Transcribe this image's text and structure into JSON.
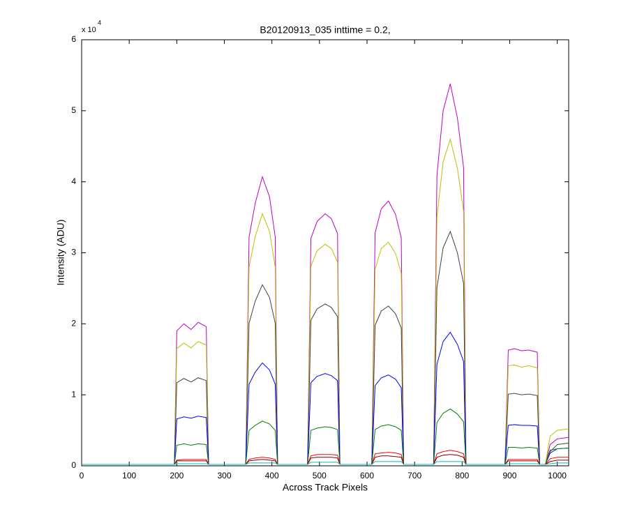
{
  "chart_data": {
    "type": "line",
    "title": "B20120913_035 inttime = 0.2,",
    "x_label": "Across Track Pixels",
    "y_label": "Intensity (ADU)",
    "y_multiplier": {
      "base": "x 10",
      "exponent": "4"
    },
    "xlim": [
      0,
      1024
    ],
    "xticks": [
      0,
      100,
      200,
      300,
      400,
      500,
      600,
      700,
      800,
      900,
      1000
    ],
    "ylim": [
      0,
      6
    ],
    "yticks": [
      0,
      1,
      2,
      3,
      4,
      5,
      6
    ],
    "grid": false,
    "x": [
      0,
      195,
      200,
      215,
      230,
      245,
      262,
      267,
      345,
      352,
      365,
      380,
      395,
      407,
      412,
      475,
      482,
      495,
      512,
      525,
      538,
      543,
      610,
      617,
      630,
      645,
      660,
      672,
      677,
      740,
      747,
      760,
      775,
      790,
      803,
      808,
      890,
      897,
      910,
      925,
      940,
      958,
      963,
      975,
      985,
      1000,
      1024
    ],
    "series": [
      {
        "color": "#bf00bf",
        "values": [
          0.02,
          0.02,
          1.9,
          2.0,
          1.92,
          2.02,
          1.96,
          0.02,
          0.02,
          3.22,
          3.7,
          4.07,
          3.79,
          3.22,
          0.02,
          0.02,
          3.2,
          3.44,
          3.55,
          3.48,
          3.27,
          0.02,
          0.02,
          3.28,
          3.62,
          3.73,
          3.54,
          3.21,
          0.02,
          0.02,
          4.09,
          5.0,
          5.38,
          4.9,
          4.2,
          0.02,
          0.02,
          1.63,
          1.65,
          1.62,
          1.63,
          1.6,
          0.02,
          0.02,
          0.3,
          0.38,
          0.4
        ]
      },
      {
        "color": "#bfbf00",
        "values": [
          0.02,
          0.02,
          1.65,
          1.73,
          1.66,
          1.75,
          1.7,
          0.02,
          0.02,
          2.8,
          3.23,
          3.55,
          3.3,
          2.8,
          0.02,
          0.02,
          2.81,
          3.03,
          3.12,
          3.06,
          2.87,
          0.02,
          0.02,
          2.77,
          3.06,
          3.15,
          2.99,
          2.71,
          0.02,
          0.02,
          3.5,
          4.28,
          4.6,
          4.19,
          3.59,
          0.02,
          0.02,
          1.41,
          1.42,
          1.39,
          1.41,
          1.38,
          0.02,
          0.02,
          0.42,
          0.5,
          0.52
        ]
      },
      {
        "color": "#404040",
        "values": [
          0.02,
          0.02,
          1.17,
          1.23,
          1.18,
          1.24,
          1.2,
          0.02,
          0.02,
          2.01,
          2.32,
          2.55,
          2.37,
          2.01,
          0.02,
          0.02,
          2.05,
          2.21,
          2.28,
          2.23,
          2.1,
          0.02,
          0.02,
          1.98,
          2.18,
          2.25,
          2.14,
          1.94,
          0.02,
          0.02,
          2.51,
          3.07,
          3.3,
          3.0,
          2.57,
          0.02,
          0.02,
          1.01,
          1.02,
          1.0,
          1.01,
          0.99,
          0.02,
          0.02,
          0.2,
          0.3,
          0.32
        ]
      },
      {
        "color": "#0000ff",
        "values": [
          0.02,
          0.02,
          0.66,
          0.69,
          0.67,
          0.7,
          0.68,
          0.02,
          0.02,
          1.15,
          1.32,
          1.45,
          1.35,
          1.15,
          0.02,
          0.02,
          1.17,
          1.26,
          1.3,
          1.27,
          1.2,
          0.02,
          0.02,
          1.13,
          1.24,
          1.28,
          1.22,
          1.1,
          0.02,
          0.02,
          1.43,
          1.75,
          1.88,
          1.71,
          1.47,
          0.02,
          0.02,
          0.57,
          0.58,
          0.57,
          0.57,
          0.56,
          0.02,
          0.02,
          0.18,
          0.24,
          0.25
        ]
      },
      {
        "color": "#008000",
        "values": [
          0.02,
          0.02,
          0.29,
          0.31,
          0.29,
          0.31,
          0.3,
          0.02,
          0.02,
          0.5,
          0.57,
          0.63,
          0.59,
          0.5,
          0.02,
          0.02,
          0.5,
          0.53,
          0.55,
          0.54,
          0.51,
          0.02,
          0.02,
          0.51,
          0.56,
          0.58,
          0.55,
          0.5,
          0.02,
          0.02,
          0.61,
          0.74,
          0.8,
          0.73,
          0.62,
          0.02,
          0.02,
          0.26,
          0.26,
          0.25,
          0.26,
          0.25,
          0.02,
          0.02,
          0.22,
          0.24,
          0.25
        ]
      },
      {
        "color": "#ff0000",
        "values": [
          0.02,
          0.02,
          0.08,
          0.09,
          0.09,
          0.09,
          0.09,
          0.02,
          0.02,
          0.09,
          0.11,
          0.12,
          0.11,
          0.09,
          0.02,
          0.02,
          0.14,
          0.16,
          0.16,
          0.16,
          0.15,
          0.02,
          0.02,
          0.17,
          0.18,
          0.19,
          0.18,
          0.16,
          0.02,
          0.02,
          0.17,
          0.2,
          0.22,
          0.2,
          0.17,
          0.02,
          0.02,
          0.09,
          0.09,
          0.09,
          0.09,
          0.09,
          0.02,
          0.02,
          0.1,
          0.12,
          0.12
        ]
      },
      {
        "color": "#800000",
        "values": [
          0.02,
          0.02,
          0.07,
          0.07,
          0.07,
          0.07,
          0.07,
          0.02,
          0.02,
          0.07,
          0.08,
          0.09,
          0.08,
          0.07,
          0.02,
          0.02,
          0.11,
          0.12,
          0.12,
          0.12,
          0.11,
          0.02,
          0.02,
          0.12,
          0.14,
          0.14,
          0.13,
          0.12,
          0.02,
          0.02,
          0.12,
          0.15,
          0.16,
          0.15,
          0.12,
          0.02,
          0.02,
          0.07,
          0.07,
          0.07,
          0.07,
          0.07,
          0.02,
          0.02,
          0.06,
          0.08,
          0.08
        ]
      },
      {
        "color": "#00bfbf",
        "values": [
          0.02,
          0.02,
          0.03,
          0.03,
          0.03,
          0.03,
          0.03,
          0.02,
          0.02,
          0.04,
          0.04,
          0.04,
          0.04,
          0.04,
          0.02,
          0.02,
          0.05,
          0.05,
          0.05,
          0.05,
          0.05,
          0.02,
          0.02,
          0.06,
          0.06,
          0.06,
          0.06,
          0.06,
          0.02,
          0.02,
          0.06,
          0.06,
          0.06,
          0.06,
          0.06,
          0.02,
          0.02,
          0.03,
          0.03,
          0.03,
          0.03,
          0.03,
          0.02,
          0.02,
          0.03,
          0.04,
          0.04
        ]
      }
    ]
  }
}
